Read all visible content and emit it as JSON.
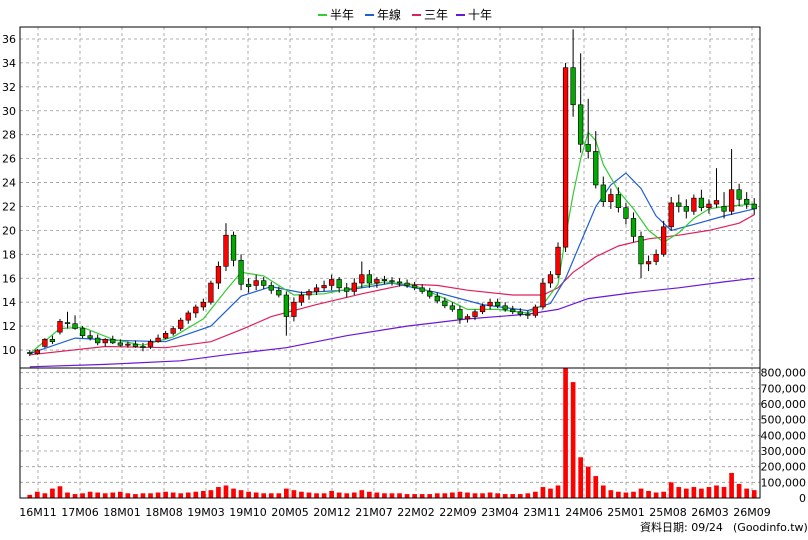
{
  "chart_data": {
    "type": "candlestick",
    "legend": [
      {
        "label": "半年",
        "color": "#33cc33"
      },
      {
        "label": "年線",
        "color": "#1f5fd6"
      },
      {
        "label": "三年",
        "color": "#e0205a"
      },
      {
        "label": "十年",
        "color": "#6a18d8"
      }
    ],
    "price_axis": {
      "ylim": [
        8.5,
        37
      ],
      "ticks": [
        10,
        12,
        14,
        16,
        18,
        20,
        22,
        24,
        26,
        28,
        30,
        32,
        34,
        36
      ]
    },
    "volume_axis": {
      "ylim": [
        0,
        830000
      ],
      "ticks": [
        0,
        100000,
        200000,
        300000,
        400000,
        500000,
        600000,
        700000,
        800000
      ],
      "tick_labels": [
        "0",
        "100,000",
        "200,000",
        "300,000",
        "400,000",
        "500,000",
        "600,000",
        "700,000",
        "800,000"
      ]
    },
    "x_tick_labels": [
      "16M11",
      "17M06",
      "18M01",
      "18M08",
      "19M03",
      "19M10",
      "20M05",
      "20M12",
      "21M07",
      "22M02",
      "22M09",
      "23M04",
      "23M11",
      "24M06",
      "25M01",
      "25M08",
      "26M03",
      "26M09"
    ],
    "colors": {
      "up": "#ff0000",
      "down": "#00aa00",
      "volume": "#ff0000",
      "grid": "#999999"
    },
    "candles": [
      [
        9.8,
        10.0,
        9.5,
        9.7
      ],
      [
        9.7,
        10.1,
        9.6,
        10.0
      ],
      [
        10.3,
        11.0,
        10.2,
        10.9
      ],
      [
        10.9,
        11.2,
        10.5,
        10.7
      ],
      [
        11.5,
        12.6,
        11.3,
        12.4
      ],
      [
        12.3,
        13.2,
        11.8,
        12.2
      ],
      [
        12.2,
        12.9,
        11.7,
        11.8
      ],
      [
        11.8,
        12.0,
        11.0,
        11.2
      ],
      [
        11.2,
        11.6,
        10.8,
        11.0
      ],
      [
        11.0,
        11.3,
        10.4,
        10.6
      ],
      [
        10.6,
        11.0,
        10.3,
        10.9
      ],
      [
        10.9,
        11.2,
        10.5,
        10.6
      ],
      [
        10.6,
        10.9,
        10.3,
        10.4
      ],
      [
        10.4,
        10.7,
        10.2,
        10.5
      ],
      [
        10.5,
        10.8,
        10.2,
        10.3
      ],
      [
        10.3,
        10.6,
        9.9,
        10.2
      ],
      [
        10.3,
        10.9,
        10.1,
        10.7
      ],
      [
        10.7,
        11.3,
        10.6,
        11.0
      ],
      [
        11.0,
        11.6,
        10.9,
        11.4
      ],
      [
        11.4,
        12.0,
        11.2,
        11.8
      ],
      [
        11.8,
        12.7,
        11.6,
        12.5
      ],
      [
        12.5,
        13.3,
        12.2,
        13.1
      ],
      [
        13.1,
        13.8,
        12.7,
        13.6
      ],
      [
        13.6,
        14.3,
        13.3,
        14.0
      ],
      [
        14.0,
        15.8,
        13.8,
        15.6
      ],
      [
        15.6,
        17.4,
        15.1,
        17.0
      ],
      [
        17.0,
        20.6,
        16.6,
        19.6
      ],
      [
        19.6,
        19.9,
        17.0,
        17.5
      ],
      [
        17.5,
        18.0,
        15.0,
        15.5
      ],
      [
        15.5,
        16.0,
        14.8,
        15.3
      ],
      [
        15.4,
        16.3,
        15.0,
        15.8
      ],
      [
        15.8,
        16.1,
        15.1,
        15.4
      ],
      [
        15.4,
        15.7,
        14.7,
        15.0
      ],
      [
        15.0,
        15.3,
        14.4,
        14.6
      ],
      [
        14.6,
        14.9,
        11.2,
        12.8
      ],
      [
        12.8,
        14.4,
        12.4,
        14.0
      ],
      [
        14.0,
        14.9,
        13.7,
        14.6
      ],
      [
        14.6,
        15.1,
        14.2,
        14.9
      ],
      [
        14.9,
        15.5,
        14.6,
        15.2
      ],
      [
        15.2,
        15.8,
        14.9,
        15.4
      ],
      [
        15.4,
        16.3,
        15.0,
        15.9
      ],
      [
        15.9,
        16.1,
        14.8,
        15.2
      ],
      [
        15.2,
        15.6,
        14.4,
        14.9
      ],
      [
        14.9,
        16.0,
        14.6,
        15.6
      ],
      [
        15.6,
        17.4,
        15.2,
        16.3
      ],
      [
        16.3,
        16.7,
        15.2,
        15.6
      ],
      [
        15.6,
        16.1,
        15.2,
        15.9
      ],
      [
        15.9,
        16.2,
        15.5,
        15.8
      ],
      [
        15.8,
        16.1,
        15.4,
        15.7
      ],
      [
        15.7,
        16.0,
        15.3,
        15.6
      ],
      [
        15.6,
        15.9,
        15.2,
        15.4
      ],
      [
        15.4,
        15.7,
        15.0,
        15.2
      ],
      [
        15.2,
        15.5,
        14.7,
        14.9
      ],
      [
        14.9,
        15.2,
        14.3,
        14.5
      ],
      [
        14.5,
        14.8,
        13.9,
        14.1
      ],
      [
        14.1,
        14.4,
        13.5,
        13.7
      ],
      [
        13.7,
        14.0,
        13.2,
        13.4
      ],
      [
        13.4,
        13.7,
        12.2,
        12.6
      ],
      [
        12.6,
        13.0,
        12.3,
        12.8
      ],
      [
        12.8,
        13.4,
        12.5,
        13.2
      ],
      [
        13.2,
        13.9,
        13.0,
        13.7
      ],
      [
        13.7,
        14.3,
        13.4,
        14.0
      ],
      [
        14.0,
        14.3,
        13.5,
        13.7
      ],
      [
        13.7,
        14.0,
        13.2,
        13.4
      ],
      [
        13.4,
        13.7,
        13.0,
        13.2
      ],
      [
        13.2,
        13.5,
        12.8,
        13.0
      ],
      [
        13.0,
        13.3,
        12.6,
        12.9
      ],
      [
        12.9,
        13.8,
        12.7,
        13.6
      ],
      [
        13.6,
        16.0,
        13.4,
        15.6
      ],
      [
        15.6,
        16.6,
        15.2,
        16.3
      ],
      [
        16.3,
        19.0,
        16.0,
        18.6
      ],
      [
        18.6,
        34.0,
        18.2,
        33.6
      ],
      [
        33.6,
        36.8,
        29.5,
        30.5
      ],
      [
        30.5,
        34.8,
        26.5,
        27.2
      ],
      [
        27.2,
        31.0,
        26.0,
        26.6
      ],
      [
        26.6,
        28.3,
        23.5,
        23.8
      ],
      [
        23.8,
        24.5,
        22.0,
        22.4
      ],
      [
        22.4,
        23.5,
        21.8,
        23.0
      ],
      [
        23.0,
        23.6,
        21.5,
        21.9
      ],
      [
        21.9,
        22.3,
        20.5,
        21.0
      ],
      [
        21.0,
        21.5,
        19.0,
        19.5
      ],
      [
        19.5,
        19.9,
        16.0,
        17.2
      ],
      [
        17.2,
        17.9,
        16.6,
        17.4
      ],
      [
        17.4,
        18.4,
        17.1,
        18.0
      ],
      [
        18.0,
        20.8,
        17.8,
        20.3
      ],
      [
        20.3,
        22.8,
        20.0,
        22.3
      ],
      [
        22.3,
        23.0,
        21.5,
        22.0
      ],
      [
        22.0,
        22.6,
        21.0,
        21.6
      ],
      [
        21.6,
        23.0,
        21.3,
        22.7
      ],
      [
        22.7,
        23.4,
        21.6,
        21.9
      ],
      [
        21.9,
        22.6,
        21.4,
        22.2
      ],
      [
        22.2,
        25.2,
        21.9,
        22.5
      ],
      [
        22.0,
        23.2,
        21.0,
        21.6
      ],
      [
        21.6,
        26.8,
        21.3,
        23.4
      ],
      [
        23.4,
        23.9,
        22.0,
        22.6
      ],
      [
        22.6,
        23.2,
        21.8,
        22.2
      ],
      [
        22.2,
        22.7,
        21.3,
        21.8
      ]
    ],
    "volume": [
      20000,
      40000,
      30000,
      60000,
      75000,
      35000,
      25000,
      30000,
      40000,
      35000,
      30000,
      35000,
      40000,
      30000,
      25000,
      30000,
      30000,
      35000,
      40000,
      35000,
      30000,
      35000,
      40000,
      45000,
      50000,
      70000,
      80000,
      60000,
      50000,
      40000,
      35000,
      30000,
      30000,
      30000,
      60000,
      50000,
      40000,
      35000,
      30000,
      30000,
      45000,
      35000,
      30000,
      35000,
      50000,
      40000,
      35000,
      30000,
      30000,
      30000,
      25000,
      25000,
      25000,
      25000,
      30000,
      30000,
      35000,
      40000,
      35000,
      30000,
      30000,
      35000,
      30000,
      25000,
      25000,
      25000,
      30000,
      40000,
      70000,
      60000,
      80000,
      830000,
      740000,
      260000,
      200000,
      140000,
      80000,
      50000,
      40000,
      35000,
      40000,
      60000,
      45000,
      35000,
      40000,
      100000,
      70000,
      60000,
      70000,
      60000,
      70000,
      80000,
      70000,
      160000,
      90000,
      60000,
      50000
    ],
    "ma_halfyear": [
      [
        0,
        9.7
      ],
      [
        4,
        11.8
      ],
      [
        7,
        11.9
      ],
      [
        11,
        10.9
      ],
      [
        15,
        10.4
      ],
      [
        19,
        11.1
      ],
      [
        23,
        12.6
      ],
      [
        26,
        15.0
      ],
      [
        28,
        16.5
      ],
      [
        31,
        16.2
      ],
      [
        35,
        14.6
      ],
      [
        39,
        14.7
      ],
      [
        43,
        15.2
      ],
      [
        47,
        15.7
      ],
      [
        51,
        15.4
      ],
      [
        55,
        14.3
      ],
      [
        58,
        13.4
      ],
      [
        62,
        13.4
      ],
      [
        66,
        13.1
      ],
      [
        68,
        13.8
      ],
      [
        70,
        15.5
      ],
      [
        71,
        19.5
      ],
      [
        72,
        23.0
      ],
      [
        73,
        26.0
      ],
      [
        74,
        28.2
      ],
      [
        75,
        27.5
      ],
      [
        76,
        25.5
      ],
      [
        78,
        23.3
      ],
      [
        80,
        21.8
      ],
      [
        82,
        20.0
      ],
      [
        84,
        19.0
      ],
      [
        86,
        19.8
      ],
      [
        88,
        21.0
      ],
      [
        90,
        21.8
      ],
      [
        92,
        22.0
      ],
      [
        96,
        22.2
      ]
    ],
    "ma_year": [
      [
        0,
        9.7
      ],
      [
        6,
        11.0
      ],
      [
        12,
        10.8
      ],
      [
        18,
        10.7
      ],
      [
        24,
        12.0
      ],
      [
        28,
        14.5
      ],
      [
        32,
        15.3
      ],
      [
        36,
        14.8
      ],
      [
        42,
        15.0
      ],
      [
        48,
        15.6
      ],
      [
        54,
        14.8
      ],
      [
        60,
        13.8
      ],
      [
        66,
        13.3
      ],
      [
        69,
        13.9
      ],
      [
        71,
        16.0
      ],
      [
        73,
        19.0
      ],
      [
        75,
        22.0
      ],
      [
        77,
        23.8
      ],
      [
        79,
        24.8
      ],
      [
        81,
        23.5
      ],
      [
        83,
        21.2
      ],
      [
        85,
        20.0
      ],
      [
        88,
        20.5
      ],
      [
        92,
        21.2
      ],
      [
        96,
        21.8
      ]
    ],
    "ma_3year": [
      [
        0,
        9.6
      ],
      [
        10,
        10.3
      ],
      [
        18,
        10.2
      ],
      [
        24,
        10.7
      ],
      [
        28,
        11.7
      ],
      [
        32,
        12.8
      ],
      [
        38,
        13.8
      ],
      [
        44,
        14.7
      ],
      [
        50,
        15.5
      ],
      [
        54,
        15.4
      ],
      [
        58,
        15.0
      ],
      [
        64,
        14.6
      ],
      [
        68,
        14.6
      ],
      [
        70,
        15.2
      ],
      [
        72,
        16.5
      ],
      [
        75,
        17.8
      ],
      [
        78,
        18.7
      ],
      [
        82,
        19.3
      ],
      [
        86,
        19.6
      ],
      [
        90,
        20.0
      ],
      [
        94,
        20.6
      ],
      [
        96,
        21.3
      ]
    ],
    "ma_10year": [
      [
        0,
        8.6
      ],
      [
        10,
        8.8
      ],
      [
        20,
        9.1
      ],
      [
        26,
        9.6
      ],
      [
        34,
        10.2
      ],
      [
        42,
        11.2
      ],
      [
        50,
        12.0
      ],
      [
        58,
        12.6
      ],
      [
        66,
        13.0
      ],
      [
        70,
        13.4
      ],
      [
        74,
        14.3
      ],
      [
        80,
        14.8
      ],
      [
        86,
        15.2
      ],
      [
        92,
        15.7
      ],
      [
        96,
        16.0
      ]
    ]
  },
  "footer": {
    "date_label": "資料日期: 09/24",
    "source": "(Goodinfo.tw)"
  }
}
